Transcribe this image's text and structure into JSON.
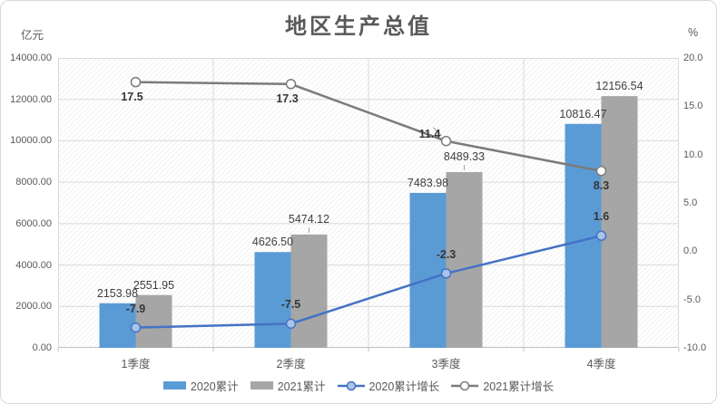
{
  "chart_data": {
    "type": "combo-bar-line",
    "title": "地区生产总值",
    "categories": [
      "1季度",
      "2季度",
      "3季度",
      "4季度"
    ],
    "series": [
      {
        "name": "2020累计",
        "type": "bar",
        "axis": "left",
        "color": "#5B9BD5",
        "values": [
          2153.98,
          4626.5,
          7483.98,
          10816.47
        ],
        "labels": [
          "2153.98",
          "4626.50",
          "7483.98",
          "10816.47"
        ],
        "leader_indices": []
      },
      {
        "name": "2021累计",
        "type": "bar",
        "axis": "left",
        "color": "#A6A6A6",
        "values": [
          2551.95,
          5474.12,
          8489.33,
          12156.54
        ],
        "labels": [
          "2551.95",
          "5474.12",
          "8489.33",
          "12156.54"
        ],
        "leader_indices": [
          1,
          2
        ]
      },
      {
        "name": "2020累计增长",
        "type": "line",
        "axis": "right",
        "color": "#4472C4",
        "marker_fill": "#A9C4EA",
        "values": [
          -7.9,
          -7.5,
          -2.3,
          1.6
        ],
        "labels": [
          "-7.9",
          "-7.5",
          "-2.3",
          "1.6"
        ],
        "label_side": "above",
        "label_offsets": [
          [
            0,
            0
          ],
          [
            0,
            0
          ],
          [
            0,
            0
          ],
          [
            0,
            0
          ]
        ],
        "leader_indices": []
      },
      {
        "name": "2021累计增长",
        "type": "line",
        "axis": "right",
        "color": "#7B7B7B",
        "marker_fill": "#FFFFFF",
        "values": [
          17.5,
          17.3,
          11.4,
          8.3
        ],
        "labels": [
          "17.5",
          "17.3",
          "11.4",
          "8.3"
        ],
        "label_side": "below",
        "label_offsets": [
          [
            -4,
            0
          ],
          [
            -4,
            0
          ],
          [
            -18,
            -24
          ],
          [
            0,
            0
          ]
        ],
        "leader_indices": [
          2
        ]
      }
    ],
    "left_axis": {
      "unit": "亿元",
      "min": 0,
      "max": 14000,
      "step": 2000,
      "ticks": [
        "14000.00",
        "12000.00",
        "10000.00",
        "8000.00",
        "6000.00",
        "4000.00",
        "2000.00",
        "0.00"
      ]
    },
    "right_axis": {
      "unit": "%",
      "min": -10,
      "max": 20,
      "step": 5,
      "ticks": [
        "20.0",
        "15.0",
        "10.0",
        "5.0",
        "0.0",
        "-5.0",
        "-10.0"
      ]
    },
    "grid": true,
    "legend_position": "bottom",
    "plot_background": "diagonal-hatch",
    "colors": {
      "gridline": "#D9D9D9",
      "axis_line": "#BFBFBF",
      "axis_text": "#595959",
      "data_label": "#404040",
      "title_text": "#595959"
    }
  }
}
